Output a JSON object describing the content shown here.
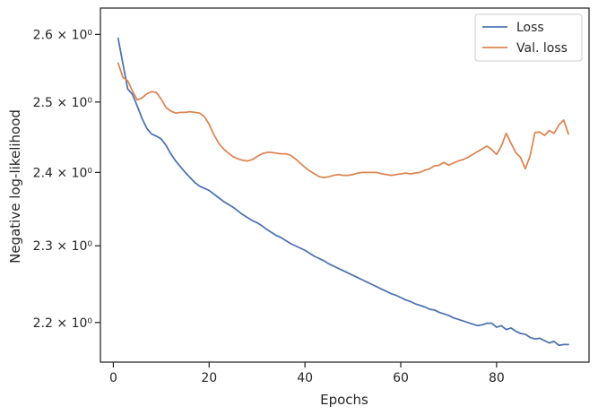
{
  "chart_data": {
    "type": "line",
    "xlabel": "Epochs",
    "ylabel": "Negative log-likelihood",
    "xlim": [
      -2.7,
      99.3
    ],
    "ylim": [
      2.15,
      2.64
    ],
    "yscale": "log",
    "grid": false,
    "legend_position": "top-right",
    "x_ticks": [
      {
        "value": 20,
        "label": "20"
      },
      {
        "value": 40,
        "label": "40"
      },
      {
        "value": 60,
        "label": "60"
      },
      {
        "value": 80,
        "label": "80"
      }
    ],
    "x_minor_ticks": [
      0
    ],
    "x_minor_labels": [
      {
        "value": 0,
        "label": "0"
      }
    ],
    "y_ticks": [
      {
        "value": 2.2,
        "label": "2.2 × 10⁰"
      },
      {
        "value": 2.3,
        "label": "2.3 × 10⁰"
      },
      {
        "value": 2.4,
        "label": "2.4 × 10⁰"
      },
      {
        "value": 2.5,
        "label": "2.5 × 10⁰"
      },
      {
        "value": 2.6,
        "label": "2.6 × 10⁰"
      }
    ],
    "series": [
      {
        "name": "Loss",
        "color": "#4c72b0",
        "x": [
          1,
          2,
          3,
          4,
          5,
          6,
          7,
          8,
          9,
          10,
          11,
          12,
          13,
          14,
          15,
          16,
          17,
          18,
          19,
          20,
          21,
          22,
          23,
          24,
          25,
          26,
          27,
          28,
          29,
          30,
          31,
          32,
          33,
          34,
          35,
          36,
          37,
          38,
          39,
          40,
          41,
          42,
          43,
          44,
          45,
          46,
          47,
          48,
          49,
          50,
          51,
          52,
          53,
          54,
          55,
          56,
          57,
          58,
          59,
          60,
          61,
          62,
          63,
          64,
          65,
          66,
          67,
          68,
          69,
          70,
          71,
          72,
          73,
          74,
          75,
          76,
          77,
          78,
          79,
          80,
          81,
          82,
          83,
          84,
          85,
          86,
          87,
          88,
          89,
          90,
          91,
          92,
          93,
          94,
          95
        ],
        "y": [
          2.594,
          2.556,
          2.519,
          2.511,
          2.494,
          2.476,
          2.462,
          2.454,
          2.451,
          2.447,
          2.438,
          2.426,
          2.416,
          2.408,
          2.4,
          2.393,
          2.386,
          2.381,
          2.378,
          2.375,
          2.37,
          2.365,
          2.36,
          2.356,
          2.352,
          2.347,
          2.342,
          2.338,
          2.334,
          2.331,
          2.327,
          2.322,
          2.318,
          2.314,
          2.311,
          2.307,
          2.303,
          2.3,
          2.297,
          2.294,
          2.29,
          2.286,
          2.283,
          2.28,
          2.276,
          2.273,
          2.27,
          2.267,
          2.264,
          2.261,
          2.258,
          2.255,
          2.252,
          2.249,
          2.246,
          2.243,
          2.24,
          2.237,
          2.235,
          2.232,
          2.229,
          2.227,
          2.224,
          2.222,
          2.22,
          2.217,
          2.216,
          2.213,
          2.211,
          2.209,
          2.206,
          2.204,
          2.202,
          2.2,
          2.198,
          2.196,
          2.197,
          2.199,
          2.199,
          2.194,
          2.196,
          2.191,
          2.193,
          2.189,
          2.186,
          2.185,
          2.181,
          2.179,
          2.18,
          2.177,
          2.174,
          2.176,
          2.171,
          2.172,
          2.172
        ]
      },
      {
        "name": "Val. loss",
        "color": "#dd8452",
        "x": [
          1,
          2,
          3,
          4,
          5,
          6,
          7,
          8,
          9,
          10,
          11,
          12,
          13,
          14,
          15,
          16,
          17,
          18,
          19,
          20,
          21,
          22,
          23,
          24,
          25,
          26,
          27,
          28,
          29,
          30,
          31,
          32,
          33,
          34,
          35,
          36,
          37,
          38,
          39,
          40,
          41,
          42,
          43,
          44,
          45,
          46,
          47,
          48,
          49,
          50,
          51,
          52,
          53,
          54,
          55,
          56,
          57,
          58,
          59,
          60,
          61,
          62,
          63,
          64,
          65,
          66,
          67,
          68,
          69,
          70,
          71,
          72,
          73,
          74,
          75,
          76,
          77,
          78,
          79,
          80,
          81,
          82,
          83,
          84,
          85,
          86,
          87,
          88,
          89,
          90,
          91,
          92,
          93,
          94,
          95
        ],
        "y": [
          2.557,
          2.536,
          2.531,
          2.516,
          2.503,
          2.506,
          2.512,
          2.515,
          2.514,
          2.504,
          2.492,
          2.487,
          2.484,
          2.485,
          2.485,
          2.486,
          2.485,
          2.484,
          2.479,
          2.468,
          2.453,
          2.441,
          2.433,
          2.427,
          2.422,
          2.419,
          2.417,
          2.416,
          2.418,
          2.422,
          2.426,
          2.428,
          2.428,
          2.427,
          2.426,
          2.426,
          2.424,
          2.419,
          2.413,
          2.407,
          2.402,
          2.398,
          2.394,
          2.393,
          2.394,
          2.396,
          2.397,
          2.396,
          2.396,
          2.397,
          2.399,
          2.4,
          2.4,
          2.4,
          2.4,
          2.398,
          2.397,
          2.396,
          2.397,
          2.398,
          2.399,
          2.398,
          2.399,
          2.4,
          2.403,
          2.405,
          2.409,
          2.41,
          2.414,
          2.41,
          2.413,
          2.416,
          2.418,
          2.421,
          2.425,
          2.429,
          2.433,
          2.437,
          2.432,
          2.425,
          2.437,
          2.455,
          2.441,
          2.428,
          2.421,
          2.405,
          2.423,
          2.456,
          2.457,
          2.452,
          2.459,
          2.455,
          2.467,
          2.474,
          2.454
        ]
      }
    ]
  }
}
